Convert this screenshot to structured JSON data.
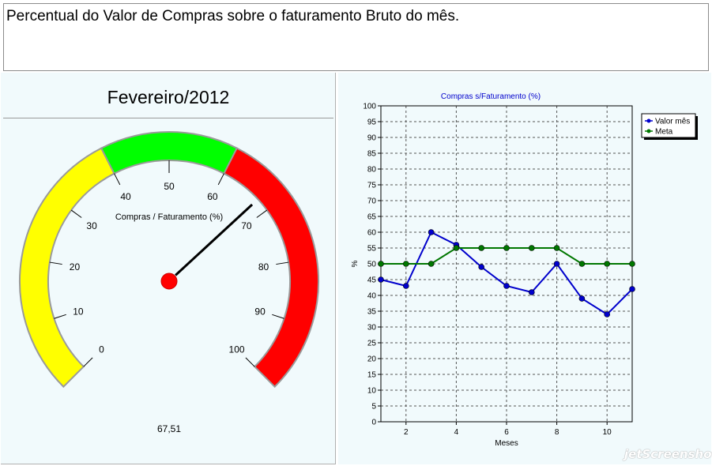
{
  "header": {
    "title": "Percentual do Valor de Compras sobre o faturamento Bruto do mês."
  },
  "gauge": {
    "month": "Fevereiro/2012",
    "label": "Compras / Faturamento (%)",
    "value": 67.51,
    "value_text": "67,51",
    "min": 0,
    "max": 100,
    "ticks": [
      "0",
      "10",
      "20",
      "30",
      "40",
      "50",
      "60",
      "70",
      "80",
      "90",
      "100"
    ],
    "bands": [
      {
        "from": 0,
        "to": 40,
        "color": "#ffff00"
      },
      {
        "from": 40,
        "to": 60,
        "color": "#00ff00"
      },
      {
        "from": 60,
        "to": 100,
        "color": "#ff0000"
      }
    ],
    "needle_color": "#000000",
    "hub_color": "#ff0000"
  },
  "chart_data": {
    "type": "line",
    "title": "Compras s/Faturamento (%)",
    "xlabel": "Meses",
    "ylabel": "%",
    "xlim": [
      1,
      11
    ],
    "ylim": [
      0,
      100
    ],
    "x_ticks": [
      "2",
      "4",
      "6",
      "8",
      "10"
    ],
    "y_ticks": [
      "0",
      "5",
      "10",
      "15",
      "20",
      "25",
      "30",
      "35",
      "40",
      "45",
      "50",
      "55",
      "60",
      "65",
      "70",
      "75",
      "80",
      "85",
      "90",
      "95",
      "100"
    ],
    "grid": true,
    "legend_position": "top-right",
    "x": [
      1,
      2,
      3,
      4,
      5,
      6,
      7,
      8,
      9,
      10,
      11
    ],
    "series": [
      {
        "name": "Valor mês",
        "color": "#0000cc",
        "values": [
          45,
          43,
          60,
          56,
          49,
          43,
          41,
          50,
          39,
          34,
          42
        ]
      },
      {
        "name": "Meta",
        "color": "#007700",
        "values": [
          50,
          50,
          50,
          55,
          55,
          55,
          55,
          55,
          50,
          50,
          50
        ]
      }
    ]
  },
  "watermark": "jetScreenshot"
}
